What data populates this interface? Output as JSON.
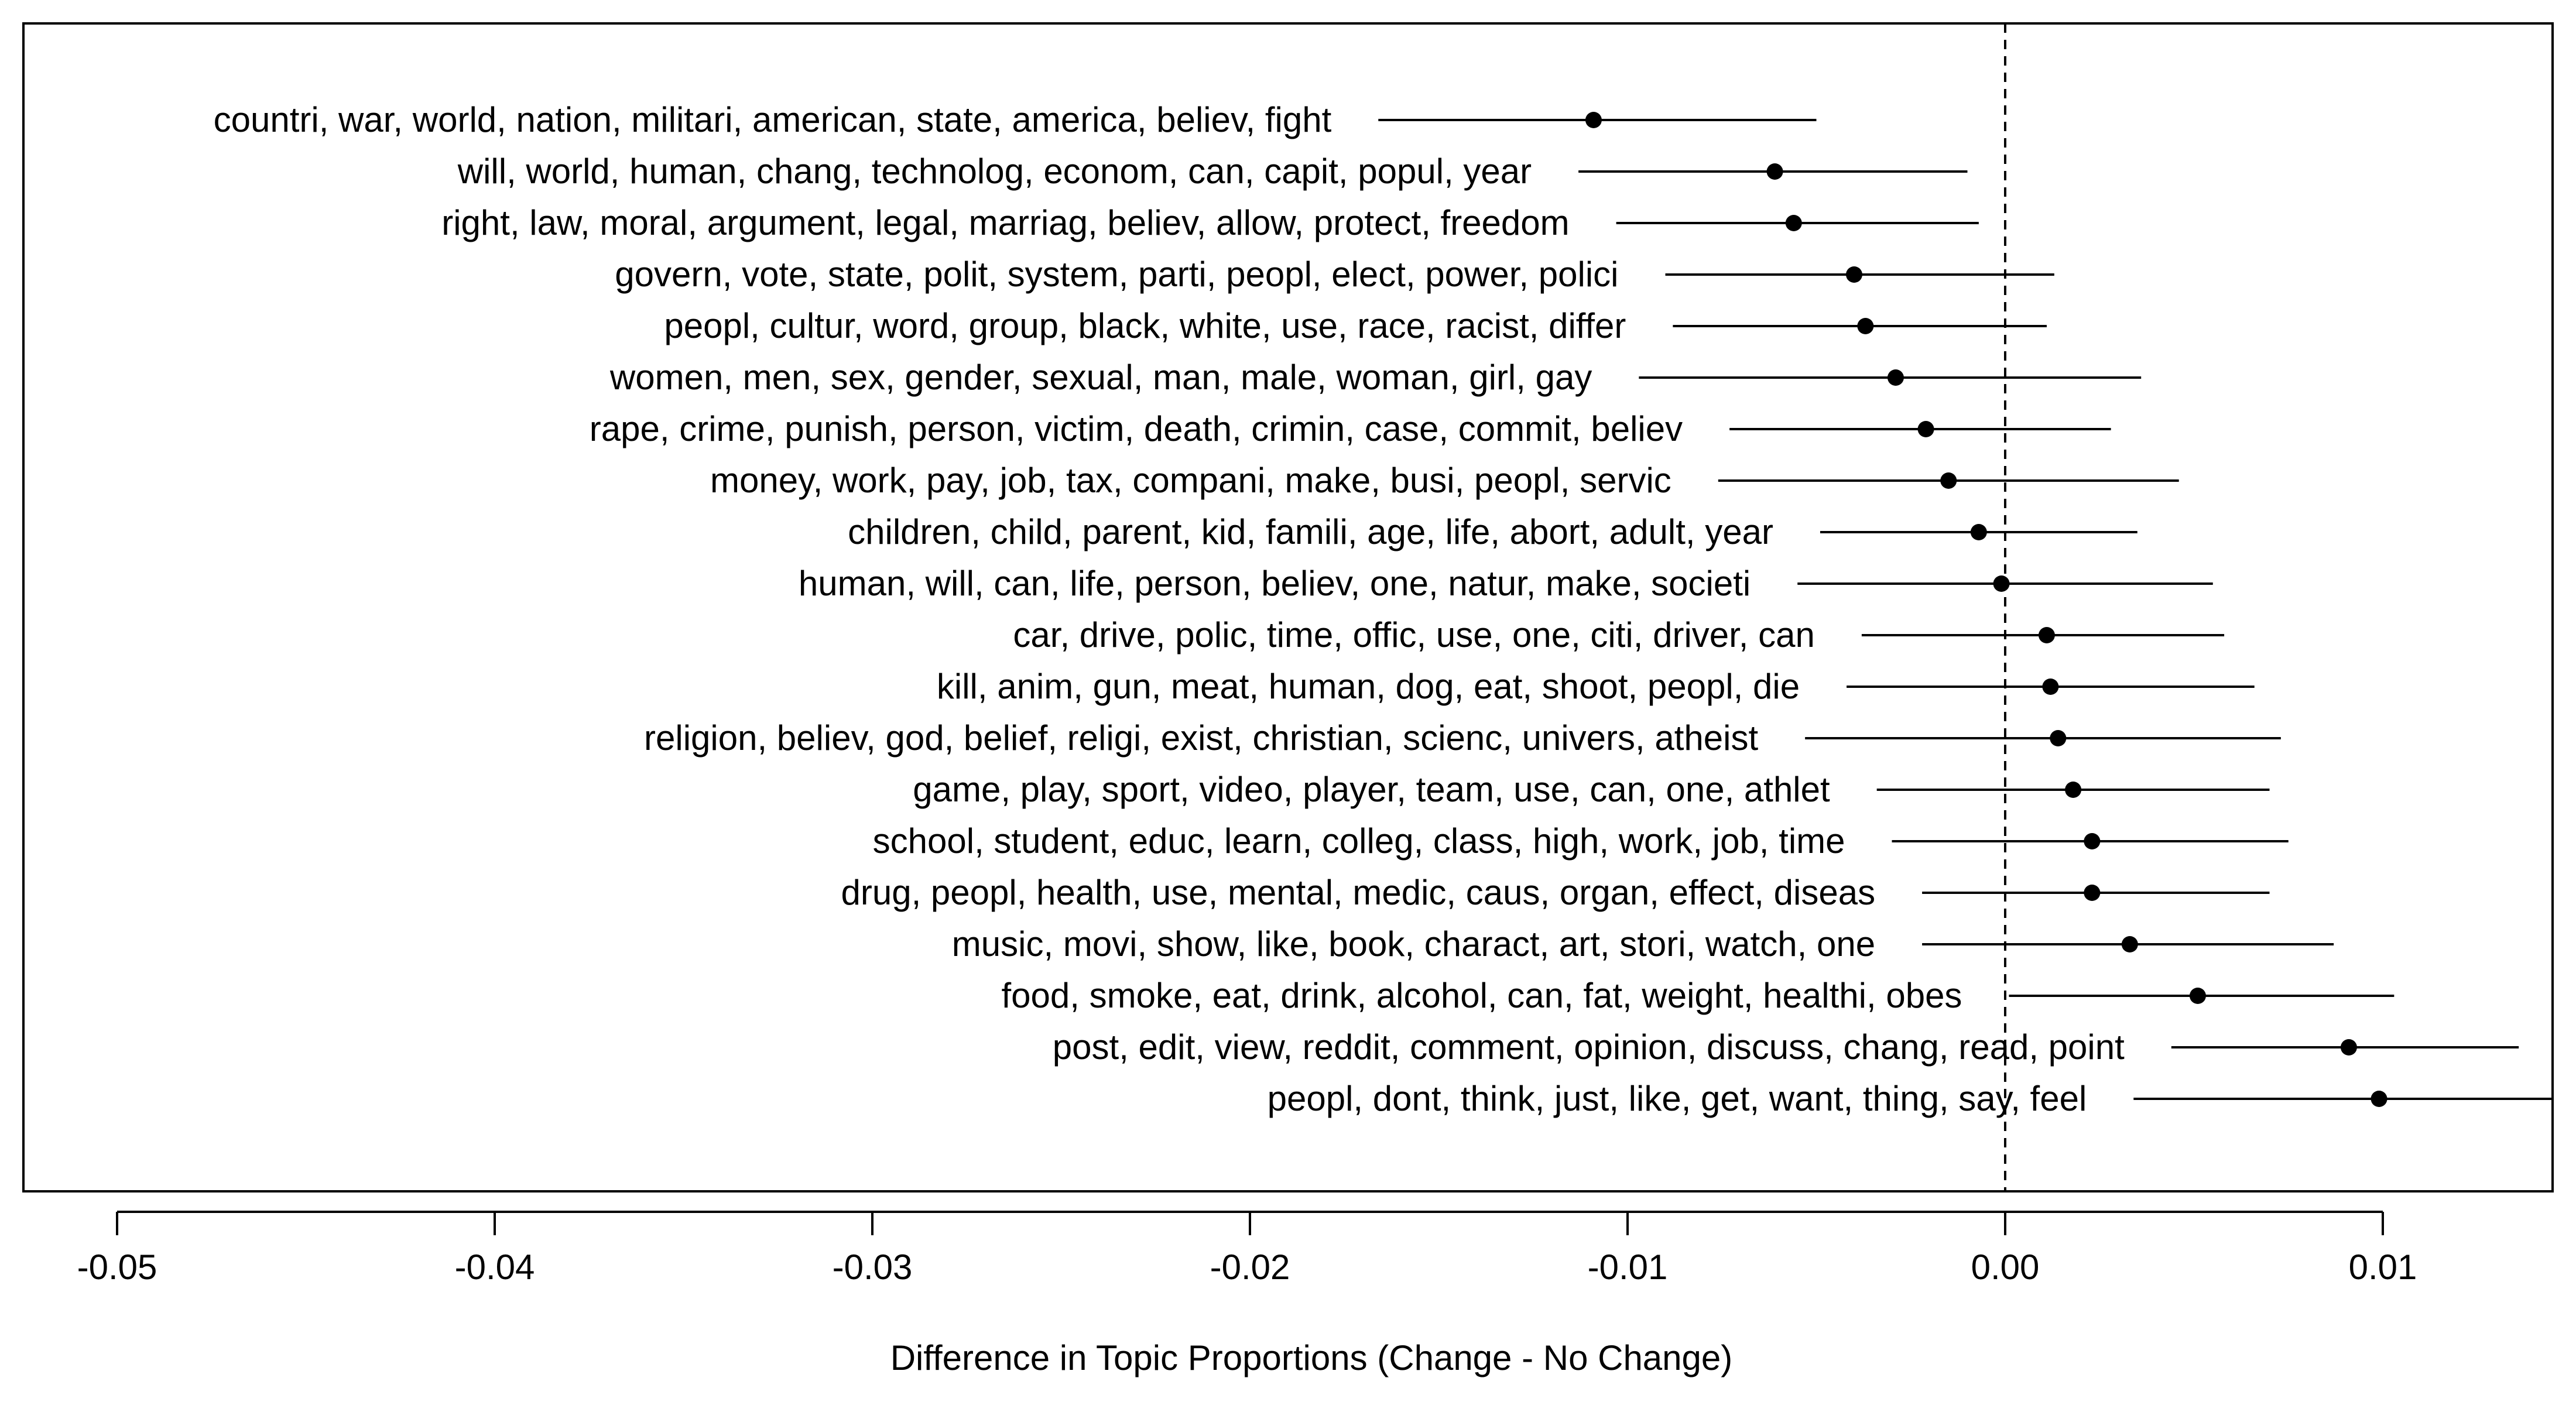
{
  "chart_data": {
    "type": "scatter",
    "subtype": "point-with-interval",
    "title": "",
    "xlabel": "Difference in Topic Proportions (Change - No Change)",
    "ylabel": "",
    "xlim": [
      -0.0525,
      0.0145
    ],
    "reference_line": {
      "x": 0,
      "style": "dashed"
    },
    "x_ticks": [
      -0.05,
      -0.04,
      -0.03,
      -0.02,
      -0.01,
      0.0,
      0.01
    ],
    "x_tick_labels": [
      "-0.05",
      "-0.04",
      "-0.03",
      "-0.02",
      "-0.01",
      "0.00",
      "0.01"
    ],
    "grid": false,
    "series": [
      {
        "label": "countri, war, world, nation, militari, american, state, america, believ, fight",
        "estimate": -0.0109,
        "lower": -0.0166,
        "upper": -0.005
      },
      {
        "label": "will, world, human, chang, technolog, econom, can, capit, popul, year",
        "estimate": -0.0061,
        "lower": -0.0113,
        "upper": -0.001
      },
      {
        "label": "right, law, moral, argument, legal, marriag, believ, allow, protect, freedom",
        "estimate": -0.0056,
        "lower": -0.0103,
        "upper": -0.0007
      },
      {
        "label": "govern, vote, state, polit, system, parti, peopl, elect, power, polici",
        "estimate": -0.004,
        "lower": -0.009,
        "upper": 0.0013
      },
      {
        "label": "peopl, cultur, word, group, black, white, use, race, racist, differ",
        "estimate": -0.0037,
        "lower": -0.0088,
        "upper": 0.0011
      },
      {
        "label": "women, men, sex, gender, sexual, man, male, woman, girl, gay",
        "estimate": -0.0029,
        "lower": -0.0097,
        "upper": 0.0036
      },
      {
        "label": "rape, crime, punish, person, victim, death, crimin, case, commit, believ",
        "estimate": -0.0021,
        "lower": -0.0073,
        "upper": 0.0028
      },
      {
        "label": "money, work, pay, job, tax, compani, make, busi, peopl, servic",
        "estimate": -0.0015,
        "lower": -0.0076,
        "upper": 0.0046
      },
      {
        "label": "children, child, parent, kid, famili, age, life, abort, adult, year",
        "estimate": -0.0007,
        "lower": -0.0049,
        "upper": 0.0035
      },
      {
        "label": "human, will, can, life, person, believ, one, natur, make, societi",
        "estimate": -0.0001,
        "lower": -0.0055,
        "upper": 0.0055
      },
      {
        "label": "car, drive, polic, time, offic, use, one, citi, driver, can",
        "estimate": 0.0011,
        "lower": -0.0038,
        "upper": 0.0058
      },
      {
        "label": "kill, anim, gun, meat, human, dog, eat, shoot, peopl, die",
        "estimate": 0.0012,
        "lower": -0.0042,
        "upper": 0.0066
      },
      {
        "label": "religion, believ, god, belief, religi, exist, christian, scienc, univers, atheist",
        "estimate": 0.0014,
        "lower": -0.0053,
        "upper": 0.0073
      },
      {
        "label": "game, play, sport, video, player, team, use, can, one, athlet",
        "estimate": 0.0018,
        "lower": -0.0034,
        "upper": 0.007
      },
      {
        "label": "school, student, educ, learn, colleg, class, high, work, job, time",
        "estimate": 0.0023,
        "lower": -0.003,
        "upper": 0.0075
      },
      {
        "label": "drug, peopl, health, use, mental, medic, caus, organ, effect, diseas",
        "estimate": 0.0023,
        "lower": -0.0022,
        "upper": 0.007
      },
      {
        "label": "music, movi, show, like, book, charact, art, stori, watch, one",
        "estimate": 0.0033,
        "lower": -0.0022,
        "upper": 0.0087
      },
      {
        "label": "food, smoke, eat, drink, alcohol, can, fat, weight, healthi, obes",
        "estimate": 0.0051,
        "lower": 0.0001,
        "upper": 0.0103
      },
      {
        "label": "post, edit, view, reddit, comment, opinion, discuss, chang, read, point",
        "estimate": 0.0091,
        "lower": 0.0044,
        "upper": 0.0136
      },
      {
        "label": "peopl, dont, think, just, like, get, want, thing, say, feel",
        "estimate": 0.0099,
        "lower": 0.0034,
        "upper": 0.0145
      }
    ]
  }
}
